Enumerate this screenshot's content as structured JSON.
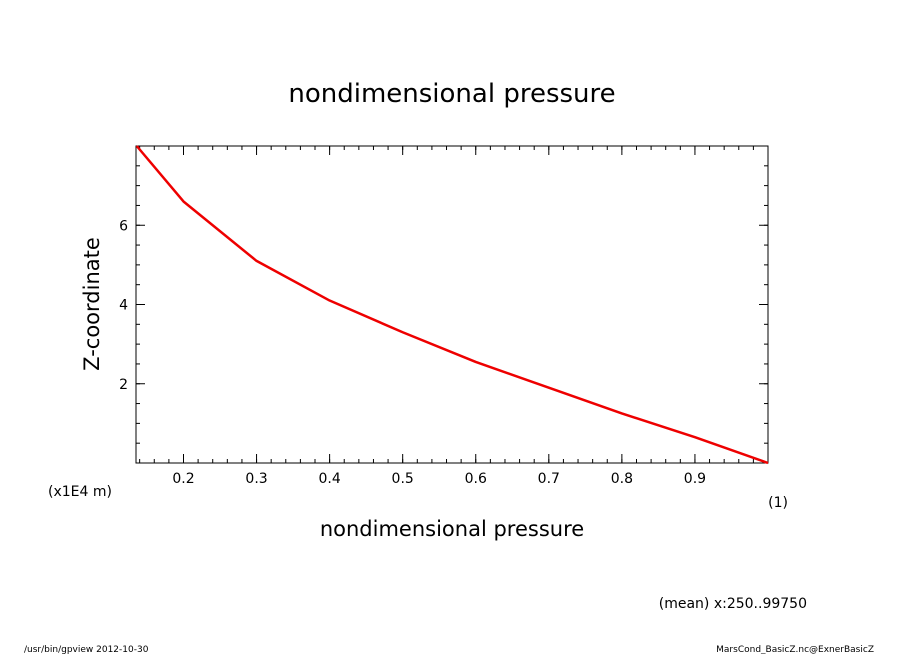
{
  "chart_data": {
    "type": "line",
    "title": "nondimensional pressure",
    "xlabel": "nondimensional pressure",
    "ylabel": "Z-coordinate",
    "x_unit": "(1)",
    "y_unit": "(x1E4 m)",
    "xlim": [
      0.135,
      1.0
    ],
    "ylim": [
      0.0,
      8.0
    ],
    "x_ticks": [
      0.2,
      0.3,
      0.4,
      0.5,
      0.6,
      0.7,
      0.8,
      0.9
    ],
    "x_tick_labels": [
      "0.2",
      "0.3",
      "0.4",
      "0.5",
      "0.6",
      "0.7",
      "0.8",
      "0.9"
    ],
    "y_ticks": [
      2,
      4,
      6
    ],
    "y_tick_labels": [
      "2",
      "4",
      "6"
    ],
    "grid": false,
    "series": [
      {
        "color": "#ee0000",
        "x": [
          0.136,
          0.2,
          0.3,
          0.4,
          0.5,
          0.6,
          0.7,
          0.8,
          0.9,
          1.0
        ],
        "y": [
          8.0,
          6.6,
          5.1,
          4.1,
          3.3,
          2.55,
          1.9,
          1.25,
          0.65,
          0.0
        ]
      }
    ],
    "annotation": "(mean) x:250..99750"
  },
  "footer": {
    "left": "/usr/bin/gpview  2012-10-30",
    "right": "MarsCond_BasicZ.nc@ExnerBasicZ"
  }
}
